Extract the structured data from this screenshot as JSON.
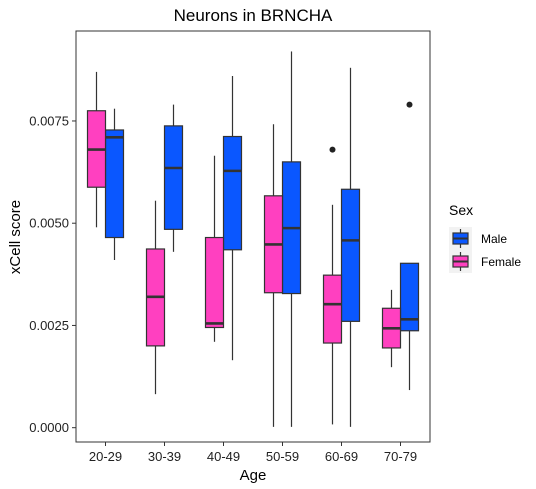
{
  "chart_data": {
    "type": "boxplot",
    "title": "Neurons in BRNCHA",
    "xlabel": "Age",
    "ylabel": "xCell score",
    "categories": [
      "20-29",
      "30-39",
      "40-49",
      "50-59",
      "60-69",
      "70-79"
    ],
    "ylim": [
      -0.00035,
      0.0097
    ],
    "yticks": [
      0.0,
      0.0025,
      0.005,
      0.0075
    ],
    "ytick_labels": [
      "0.0000",
      "0.0025",
      "0.0050",
      "0.0075"
    ],
    "grid": false,
    "legend": {
      "title": "Sex",
      "position": "right"
    },
    "series": [
      {
        "name": "Male",
        "color": "#0A57FF",
        "boxes": [
          {
            "category": "20-29",
            "min": 0.0041,
            "q1": 0.00465,
            "median": 0.0071,
            "q3": 0.00728,
            "max": 0.0078,
            "outliers": []
          },
          {
            "category": "30-39",
            "min": 0.0043,
            "q1": 0.00485,
            "median": 0.00635,
            "q3": 0.00738,
            "max": 0.0079,
            "outliers": []
          },
          {
            "category": "40-49",
            "min": 0.00165,
            "q1": 0.00435,
            "median": 0.00628,
            "q3": 0.00712,
            "max": 0.0086,
            "outliers": []
          },
          {
            "category": "50-59",
            "min": 2e-05,
            "q1": 0.00328,
            "median": 0.00488,
            "q3": 0.0065,
            "max": 0.0092,
            "outliers": []
          },
          {
            "category": "60-69",
            "min": 2e-05,
            "q1": 0.0026,
            "median": 0.00458,
            "q3": 0.00583,
            "max": 0.0088,
            "outliers": []
          },
          {
            "category": "70-79",
            "min": 0.00092,
            "q1": 0.00237,
            "median": 0.00265,
            "q3": 0.00402,
            "max": 0.00402,
            "outliers": [
              0.0079
            ]
          }
        ]
      },
      {
        "name": "Female",
        "color": "#FF40C0",
        "boxes": [
          {
            "category": "20-29",
            "min": 0.0049,
            "q1": 0.00588,
            "median": 0.0068,
            "q3": 0.00775,
            "max": 0.0087,
            "outliers": []
          },
          {
            "category": "30-39",
            "min": 0.00082,
            "q1": 0.002,
            "median": 0.0032,
            "q3": 0.00437,
            "max": 0.00555,
            "outliers": []
          },
          {
            "category": "40-49",
            "min": 0.0021,
            "q1": 0.00245,
            "median": 0.00255,
            "q3": 0.00465,
            "max": 0.00665,
            "outliers": []
          },
          {
            "category": "50-59",
            "min": 2e-05,
            "q1": 0.0033,
            "median": 0.00448,
            "q3": 0.00567,
            "max": 0.00742,
            "outliers": []
          },
          {
            "category": "60-69",
            "min": 8e-05,
            "q1": 0.00207,
            "median": 0.00302,
            "q3": 0.00373,
            "max": 0.00545,
            "outliers": [
              0.0068
            ]
          },
          {
            "category": "70-79",
            "min": 0.00148,
            "q1": 0.00195,
            "median": 0.00243,
            "q3": 0.00292,
            "max": 0.00337,
            "outliers": []
          }
        ]
      }
    ]
  }
}
